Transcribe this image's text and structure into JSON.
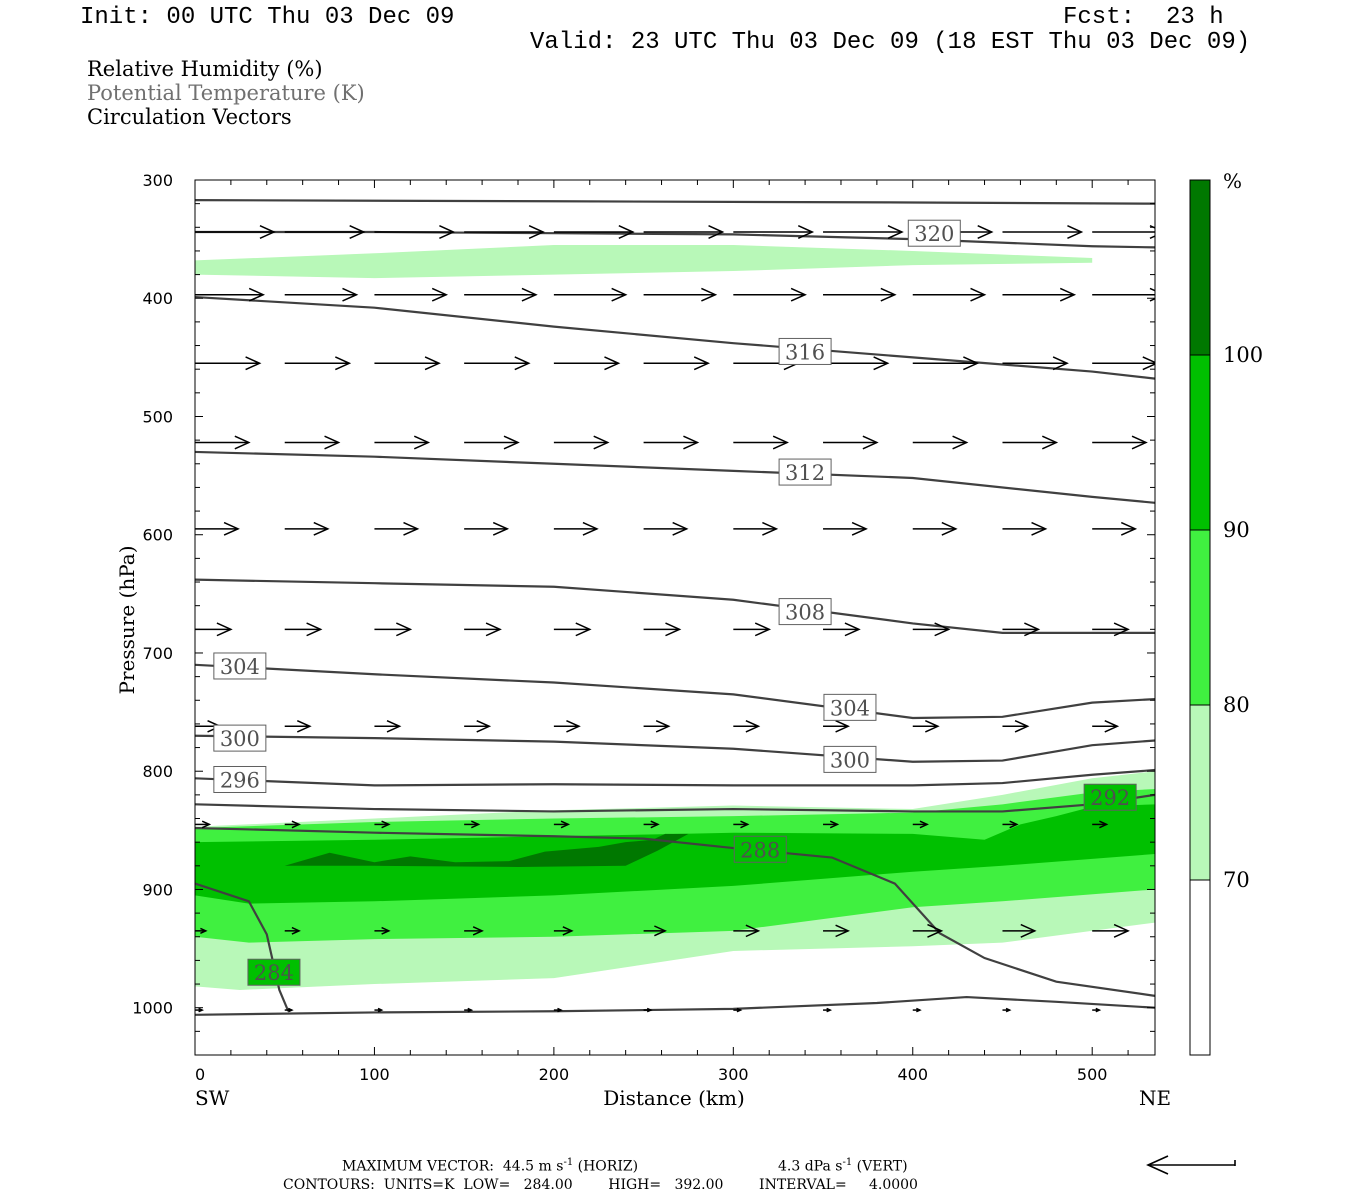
{
  "header": {
    "init": "Init: 00 UTC Thu 03 Dec 09",
    "fcst_label": "Fcst:",
    "fcst_value": "23 h",
    "valid": "Valid: 23 UTC Thu 03 Dec 09 (18 EST Thu 03 Dec 09)"
  },
  "legend": {
    "line1": "Relative Humidity (%)",
    "line2": "Potential Temperature (K)",
    "line3": "Circulation Vectors"
  },
  "footer": {
    "max_vector_label": "MAXIMUM VECTOR:",
    "horiz_value": "44.5 m s",
    "horiz_exp": "-1",
    "horiz_tag": "(HORIZ)",
    "vert_value": "4.3 dPa s",
    "vert_exp": "-1",
    "vert_tag": "(VERT)",
    "contours": "CONTOURS:  UNITS=K  LOW=   284.00        HIGH=   392.00        INTERVAL=     4.0000"
  },
  "colors": {
    "rh70": "#b8f8b8",
    "rh80": "#40f040",
    "rh90": "#00c000",
    "rh100": "#007800",
    "contour": "#404040"
  },
  "chart_data": {
    "type": "contour-cross-section",
    "xlabel": "Distance (km)",
    "ylabel": "Pressure (hPa)",
    "xlim": [
      0,
      535
    ],
    "ylim": [
      1040,
      300
    ],
    "x_ticks": [
      "0",
      "100",
      "200",
      "300",
      "400",
      "500"
    ],
    "x_tick_values": [
      0,
      100,
      200,
      300,
      400,
      500
    ],
    "y_ticks": [
      "300",
      "400",
      "500",
      "600",
      "700",
      "800",
      "900",
      "1000"
    ],
    "y_tick_values": [
      300,
      400,
      500,
      600,
      700,
      800,
      900,
      1000
    ],
    "left_end": "SW",
    "right_end": "NE",
    "colorbar": {
      "unit": "%",
      "levels": [
        "70",
        "80",
        "90",
        "100"
      ],
      "level_values": [
        70,
        80,
        90,
        100
      ],
      "range": [
        60,
        110
      ]
    },
    "theta_contours": [
      {
        "value": 320,
        "points": [
          [
            0,
            344
          ],
          [
            100,
            344
          ],
          [
            200,
            345
          ],
          [
            300,
            346
          ],
          [
            400,
            350
          ],
          [
            500,
            356
          ],
          [
            535,
            357
          ]
        ]
      },
      {
        "value": 316,
        "points": [
          [
            0,
            399
          ],
          [
            100,
            408
          ],
          [
            200,
            424
          ],
          [
            300,
            438
          ],
          [
            400,
            450
          ],
          [
            500,
            462
          ],
          [
            535,
            468
          ]
        ]
      },
      {
        "value": 312,
        "points": [
          [
            0,
            530
          ],
          [
            100,
            534
          ],
          [
            200,
            540
          ],
          [
            300,
            546
          ],
          [
            400,
            552
          ],
          [
            500,
            568
          ],
          [
            535,
            573
          ]
        ]
      },
      {
        "value": 308,
        "points": [
          [
            0,
            638
          ],
          [
            100,
            641
          ],
          [
            200,
            644
          ],
          [
            300,
            655
          ],
          [
            400,
            675
          ],
          [
            450,
            683
          ],
          [
            535,
            683
          ]
        ]
      },
      {
        "value": 304,
        "points": [
          [
            0,
            710
          ],
          [
            100,
            718
          ],
          [
            200,
            725
          ],
          [
            300,
            735
          ],
          [
            400,
            755
          ],
          [
            450,
            754
          ],
          [
            500,
            742
          ],
          [
            535,
            739
          ]
        ]
      },
      {
        "value": 300,
        "points": [
          [
            0,
            770
          ],
          [
            100,
            772
          ],
          [
            200,
            775
          ],
          [
            300,
            781
          ],
          [
            400,
            792
          ],
          [
            450,
            791
          ],
          [
            500,
            778
          ],
          [
            535,
            774
          ]
        ]
      },
      {
        "value": 296,
        "points": [
          [
            0,
            806
          ],
          [
            100,
            812
          ],
          [
            200,
            811
          ],
          [
            300,
            812
          ],
          [
            400,
            812
          ],
          [
            450,
            810
          ],
          [
            500,
            803
          ],
          [
            535,
            799
          ]
        ]
      },
      {
        "value": 292,
        "points": [
          [
            0,
            828
          ],
          [
            100,
            832
          ],
          [
            200,
            834
          ],
          [
            300,
            832
          ],
          [
            400,
            834
          ],
          [
            450,
            834
          ],
          [
            500,
            828
          ],
          [
            535,
            820
          ]
        ]
      },
      {
        "value": 288,
        "points": [
          [
            0,
            848
          ],
          [
            100,
            852
          ],
          [
            200,
            855
          ],
          [
            250,
            857
          ],
          [
            300,
            865
          ],
          [
            355,
            873
          ],
          [
            390,
            895
          ],
          [
            415,
            937
          ],
          [
            440,
            958
          ],
          [
            480,
            978
          ],
          [
            535,
            990
          ]
        ]
      },
      {
        "value": 284,
        "points": [
          [
            0,
            895
          ],
          [
            30,
            910
          ],
          [
            40,
            938
          ],
          [
            47,
            985
          ],
          [
            52,
            1003
          ]
        ]
      },
      {
        "value": 284,
        "points": [
          [
            0,
            1006
          ],
          [
            100,
            1004
          ],
          [
            200,
            1003
          ],
          [
            300,
            1001
          ],
          [
            380,
            996
          ],
          [
            430,
            991
          ],
          [
            480,
            995
          ],
          [
            535,
            1000
          ]
        ]
      },
      {
        "value": 324,
        "points": [
          [
            0,
            317
          ],
          [
            200,
            318
          ],
          [
            400,
            319
          ],
          [
            535,
            320
          ]
        ]
      }
    ],
    "theta_labels": [
      {
        "text": "320",
        "x": 412,
        "p": 345
      },
      {
        "text": "316",
        "x": 340,
        "p": 445
      },
      {
        "text": "312",
        "x": 340,
        "p": 547
      },
      {
        "text": "308",
        "x": 340,
        "p": 665
      },
      {
        "text": "304",
        "x": 25,
        "p": 711
      },
      {
        "text": "304",
        "x": 365,
        "p": 746
      },
      {
        "text": "300",
        "x": 25,
        "p": 772
      },
      {
        "text": "300",
        "x": 365,
        "p": 790
      },
      {
        "text": "296",
        "x": 25,
        "p": 807
      },
      {
        "text": "292",
        "x": 510,
        "p": 822
      },
      {
        "text": "288",
        "x": 315,
        "p": 866
      },
      {
        "text": "284",
        "x": 44,
        "p": 970
      }
    ],
    "rh_regions": [
      {
        "level": 70,
        "points": [
          [
            0,
            368
          ],
          [
            100,
            362
          ],
          [
            200,
            355
          ],
          [
            300,
            355
          ],
          [
            400,
            360
          ],
          [
            500,
            366
          ],
          [
            500,
            370
          ],
          [
            400,
            372
          ],
          [
            300,
            377
          ],
          [
            200,
            380
          ],
          [
            100,
            383
          ],
          [
            0,
            380
          ]
        ]
      },
      {
        "level": 70,
        "points": [
          [
            0,
            847
          ],
          [
            100,
            840
          ],
          [
            200,
            833
          ],
          [
            300,
            829
          ],
          [
            400,
            832
          ],
          [
            450,
            820
          ],
          [
            500,
            806
          ],
          [
            535,
            800
          ],
          [
            535,
            928
          ],
          [
            450,
            945
          ],
          [
            400,
            948
          ],
          [
            300,
            952
          ],
          [
            200,
            975
          ],
          [
            100,
            980
          ],
          [
            25,
            985
          ],
          [
            0,
            982
          ]
        ]
      },
      {
        "level": 80,
        "points": [
          [
            0,
            848
          ],
          [
            100,
            843
          ],
          [
            200,
            840
          ],
          [
            300,
            838
          ],
          [
            400,
            835
          ],
          [
            450,
            828
          ],
          [
            500,
            818
          ],
          [
            535,
            815
          ],
          [
            535,
            900
          ],
          [
            450,
            910
          ],
          [
            400,
            915
          ],
          [
            300,
            935
          ],
          [
            200,
            940
          ],
          [
            100,
            942
          ],
          [
            30,
            945
          ],
          [
            0,
            940
          ]
        ]
      },
      {
        "level": 90,
        "points": [
          [
            0,
            860
          ],
          [
            100,
            858
          ],
          [
            200,
            855
          ],
          [
            270,
            853
          ],
          [
            300,
            852
          ],
          [
            400,
            853
          ],
          [
            440,
            858
          ],
          [
            460,
            845
          ],
          [
            480,
            838
          ],
          [
            500,
            830
          ],
          [
            535,
            828
          ],
          [
            535,
            870
          ],
          [
            450,
            880
          ],
          [
            400,
            885
          ],
          [
            300,
            897
          ],
          [
            200,
            905
          ],
          [
            100,
            910
          ],
          [
            30,
            912
          ],
          [
            0,
            905
          ]
        ]
      },
      {
        "level": 100,
        "points": [
          [
            50,
            880
          ],
          [
            75,
            869
          ],
          [
            100,
            877
          ],
          [
            120,
            872
          ],
          [
            145,
            877
          ],
          [
            175,
            876
          ],
          [
            195,
            868
          ],
          [
            225,
            864
          ],
          [
            240,
            860
          ],
          [
            255,
            858
          ],
          [
            262,
            853
          ],
          [
            275,
            853
          ],
          [
            258,
            867
          ],
          [
            240,
            880
          ],
          [
            180,
            881
          ],
          [
            100,
            880
          ],
          [
            60,
            880
          ]
        ]
      }
    ],
    "vector_columns_km": [
      0,
      50,
      100,
      150,
      200,
      250,
      300,
      350,
      400,
      450,
      500
    ],
    "vector_rows": [
      {
        "p": 344,
        "len_km": [
          44,
          44,
          44,
          44,
          44,
          44,
          44,
          44,
          44,
          44,
          40
        ]
      },
      {
        "p": 397,
        "len_km": [
          38,
          40,
          40,
          40,
          40,
          40,
          40,
          40,
          40,
          40,
          40
        ]
      },
      {
        "p": 455,
        "len_km": [
          36,
          36,
          36,
          36,
          36,
          36,
          36,
          36,
          36,
          36,
          36
        ]
      },
      {
        "p": 522,
        "len_km": [
          30,
          30,
          30,
          30,
          30,
          30,
          30,
          30,
          30,
          30,
          30
        ]
      },
      {
        "p": 595,
        "len_km": [
          24,
          24,
          24,
          24,
          24,
          24,
          24,
          24,
          24,
          24,
          24
        ]
      },
      {
        "p": 680,
        "len_km": [
          20,
          20,
          20,
          20,
          20,
          20,
          20,
          20,
          20,
          20,
          20
        ]
      },
      {
        "p": 762,
        "len_km": [
          14,
          14,
          14,
          14,
          14,
          14,
          14,
          14,
          14,
          14,
          14
        ]
      },
      {
        "p": 845,
        "len_km": [
          8,
          8,
          8,
          8,
          8,
          8,
          8,
          8,
          8,
          8,
          8
        ]
      },
      {
        "p": 935,
        "len_km": [
          6,
          8,
          8,
          10,
          10,
          12,
          14,
          14,
          16,
          18,
          20
        ]
      },
      {
        "p": 1002,
        "len_km": [
          4,
          4,
          4,
          4,
          4,
          4,
          4,
          4,
          4,
          4,
          4
        ]
      }
    ]
  }
}
